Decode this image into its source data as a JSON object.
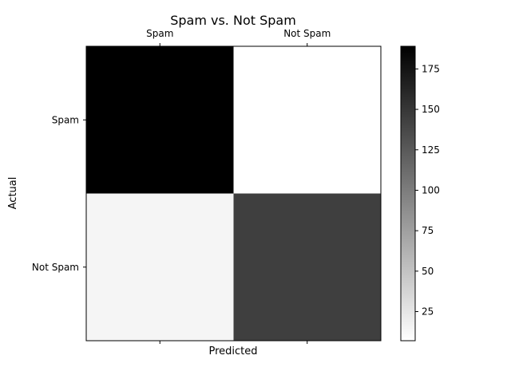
{
  "chart_data": {
    "type": "heatmap",
    "title": "Spam vs. Not Spam",
    "xlabel": "Predicted",
    "ylabel": "Actual",
    "x_categories": [
      "Spam",
      "Not Spam"
    ],
    "y_categories": [
      "Spam",
      "Not Spam"
    ],
    "values": [
      [
        189,
        7
      ],
      [
        14,
        144
      ]
    ],
    "colormap": "Greys",
    "colorbar": {
      "vmin": 7,
      "vmax": 189,
      "ticks": [
        25,
        50,
        75,
        100,
        125,
        150,
        175
      ]
    },
    "grid": false,
    "x_ticks_position": "top"
  }
}
